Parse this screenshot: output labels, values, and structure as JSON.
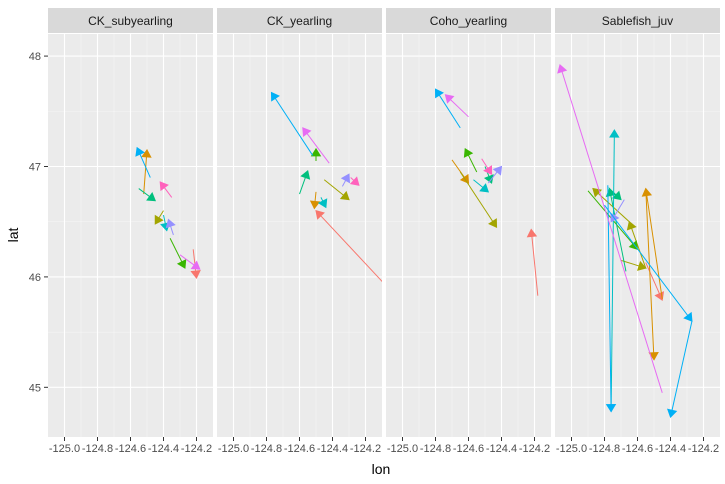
{
  "chart_data": {
    "type": "line",
    "xlabel": "lon",
    "ylabel": "lat",
    "xlim": [
      -125.1,
      -124.1
    ],
    "ylim": [
      44.55,
      48.2
    ],
    "x_ticks": [
      -125.0,
      -124.8,
      -124.6,
      -124.4,
      -124.2
    ],
    "x_tick_labels": [
      "-125.0",
      "-124.8",
      "-124.6",
      "-124.4",
      "-124.2"
    ],
    "y_ticks": [
      45,
      46,
      47,
      48
    ],
    "y_tick_labels": [
      "45",
      "46",
      "47",
      "48"
    ],
    "grid": true,
    "legend": "none",
    "colors": {
      "panel_bg": "#ebebeb",
      "strip_bg": "#d9d9d9",
      "grid_major": "#ffffff",
      "series_palette": [
        "#f8766d",
        "#d89000",
        "#a3a500",
        "#39b600",
        "#00bf7d",
        "#00bfc4",
        "#00b0f6",
        "#9590ff",
        "#e76bf3",
        "#ff62bc"
      ]
    },
    "facets": [
      {
        "name": "CK_subyearling",
        "tracks": [
          {
            "color": "#f8766d",
            "points": [
              [
                -124.22,
                46.25
              ],
              [
                -124.2,
                45.99
              ]
            ]
          },
          {
            "color": "#d89000",
            "points": [
              [
                -124.52,
                46.75
              ],
              [
                -124.5,
                47.15
              ]
            ]
          },
          {
            "color": "#a3a500",
            "points": [
              [
                -124.4,
                46.6
              ],
              [
                -124.45,
                46.48
              ]
            ]
          },
          {
            "color": "#39b600",
            "points": [
              [
                -124.36,
                46.35
              ],
              [
                -124.27,
                46.08
              ]
            ]
          },
          {
            "color": "#00bf7d",
            "points": [
              [
                -124.55,
                46.8
              ],
              [
                -124.45,
                46.69
              ]
            ]
          },
          {
            "color": "#00bfc4",
            "points": [
              [
                -124.4,
                46.56
              ],
              [
                -124.38,
                46.42
              ]
            ]
          },
          {
            "color": "#00b0f6",
            "points": [
              [
                -124.48,
                46.9
              ],
              [
                -124.56,
                47.17
              ]
            ]
          },
          {
            "color": "#9590ff",
            "points": [
              [
                -124.34,
                46.38
              ],
              [
                -124.37,
                46.52
              ]
            ]
          },
          {
            "color": "#e76bf3",
            "points": [
              [
                -124.3,
                46.2
              ],
              [
                -124.18,
                46.07
              ]
            ]
          },
          {
            "color": "#ff62bc",
            "points": [
              [
                -124.35,
                46.72
              ],
              [
                -124.42,
                46.86
              ]
            ]
          }
        ]
      },
      {
        "name": "CK_yearling",
        "tracks": [
          {
            "color": "#f8766d",
            "points": [
              [
                -124.0,
                45.8
              ],
              [
                -124.5,
                46.6
              ]
            ]
          },
          {
            "color": "#d89000",
            "points": [
              [
                -124.5,
                46.77
              ],
              [
                -124.51,
                46.62
              ]
            ]
          },
          {
            "color": "#a3a500",
            "points": [
              [
                -124.45,
                46.88
              ],
              [
                -124.3,
                46.7
              ]
            ]
          },
          {
            "color": "#39b600",
            "points": [
              [
                -124.5,
                47.05
              ],
              [
                -124.5,
                47.16
              ]
            ]
          },
          {
            "color": "#00bf7d",
            "points": [
              [
                -124.6,
                46.75
              ],
              [
                -124.55,
                46.96
              ]
            ]
          },
          {
            "color": "#00bfc4",
            "points": [
              [
                -124.47,
                46.72
              ],
              [
                -124.44,
                46.63
              ]
            ]
          },
          {
            "color": "#00b0f6",
            "points": [
              [
                -124.52,
                47.1
              ],
              [
                -124.77,
                47.67
              ]
            ]
          },
          {
            "color": "#9590ff",
            "points": [
              [
                -124.34,
                46.82
              ],
              [
                -124.3,
                46.93
              ]
            ]
          },
          {
            "color": "#e76bf3",
            "points": [
              [
                -124.42,
                47.03
              ],
              [
                -124.58,
                47.35
              ]
            ]
          },
          {
            "color": "#ff62bc",
            "points": [
              [
                -124.29,
                46.9
              ],
              [
                -124.24,
                46.83
              ]
            ]
          }
        ]
      },
      {
        "name": "Coho_yearling",
        "tracks": [
          {
            "color": "#f8766d",
            "points": [
              [
                -124.18,
                45.83
              ],
              [
                -124.22,
                46.43
              ]
            ]
          },
          {
            "color": "#d89000",
            "points": [
              [
                -124.7,
                47.06
              ],
              [
                -124.6,
                46.85
              ]
            ]
          },
          {
            "color": "#a3a500",
            "points": [
              [
                -124.65,
                46.95
              ],
              [
                -124.43,
                46.45
              ]
            ]
          },
          {
            "color": "#39b600",
            "points": [
              [
                -124.55,
                46.95
              ],
              [
                -124.62,
                47.16
              ]
            ]
          },
          {
            "color": "#00bf7d",
            "points": [
              [
                -124.5,
                47.0
              ],
              [
                -124.46,
                46.85
              ]
            ]
          },
          {
            "color": "#00bfc4",
            "points": [
              [
                -124.57,
                46.88
              ],
              [
                -124.48,
                46.77
              ]
            ]
          },
          {
            "color": "#00b0f6",
            "points": [
              [
                -124.65,
                47.35
              ],
              [
                -124.8,
                47.7
              ]
            ]
          },
          {
            "color": "#9590ff",
            "points": [
              [
                -124.48,
                46.85
              ],
              [
                -124.4,
                47.0
              ]
            ]
          },
          {
            "color": "#e76bf3",
            "points": [
              [
                -124.6,
                47.45
              ],
              [
                -124.74,
                47.65
              ]
            ]
          },
          {
            "color": "#ff62bc",
            "points": [
              [
                -124.52,
                47.07
              ],
              [
                -124.46,
                46.93
              ]
            ]
          }
        ]
      },
      {
        "name": "Sablefish_juv",
        "tracks": [
          {
            "color": "#f8766d",
            "points": [
              [
                -124.55,
                46.13
              ],
              [
                -124.45,
                45.79
              ]
            ]
          },
          {
            "color": "#d89000",
            "points": [
              [
                -124.45,
                45.8
              ],
              [
                -124.55,
                46.8
              ],
              [
                -124.5,
                45.25
              ]
            ]
          },
          {
            "color": "#a3a500",
            "points": [
              [
                -124.7,
                46.15
              ],
              [
                -124.55,
                46.08
              ],
              [
                -124.65,
                46.5
              ],
              [
                -124.87,
                46.8
              ]
            ]
          },
          {
            "color": "#39b600",
            "points": [
              [
                -124.9,
                46.78
              ],
              [
                -124.6,
                46.25
              ]
            ]
          },
          {
            "color": "#00bf7d",
            "points": [
              [
                -124.67,
                46.05
              ],
              [
                -124.77,
                46.8
              ],
              [
                -124.7,
                46.7
              ]
            ]
          },
          {
            "color": "#00bfc4",
            "points": [
              [
                -124.76,
                44.78
              ],
              [
                -124.74,
                47.33
              ]
            ]
          },
          {
            "color": "#00b0f6",
            "points": [
              [
                -124.78,
                46.83
              ],
              [
                -124.76,
                44.78
              ]
            ]
          },
          {
            "color": "#9590ff",
            "points": [
              [
                -124.68,
                46.7
              ],
              [
                -124.76,
                46.5
              ]
            ]
          },
          {
            "color": "#e76bf3",
            "points": [
              [
                -124.45,
                44.95
              ],
              [
                -125.07,
                47.92
              ]
            ]
          },
          {
            "color": "#00b0f6",
            "points": [
              [
                -124.8,
                46.65
              ],
              [
                -124.27,
                45.6
              ],
              [
                -124.4,
                44.73
              ]
            ]
          }
        ]
      }
    ]
  }
}
